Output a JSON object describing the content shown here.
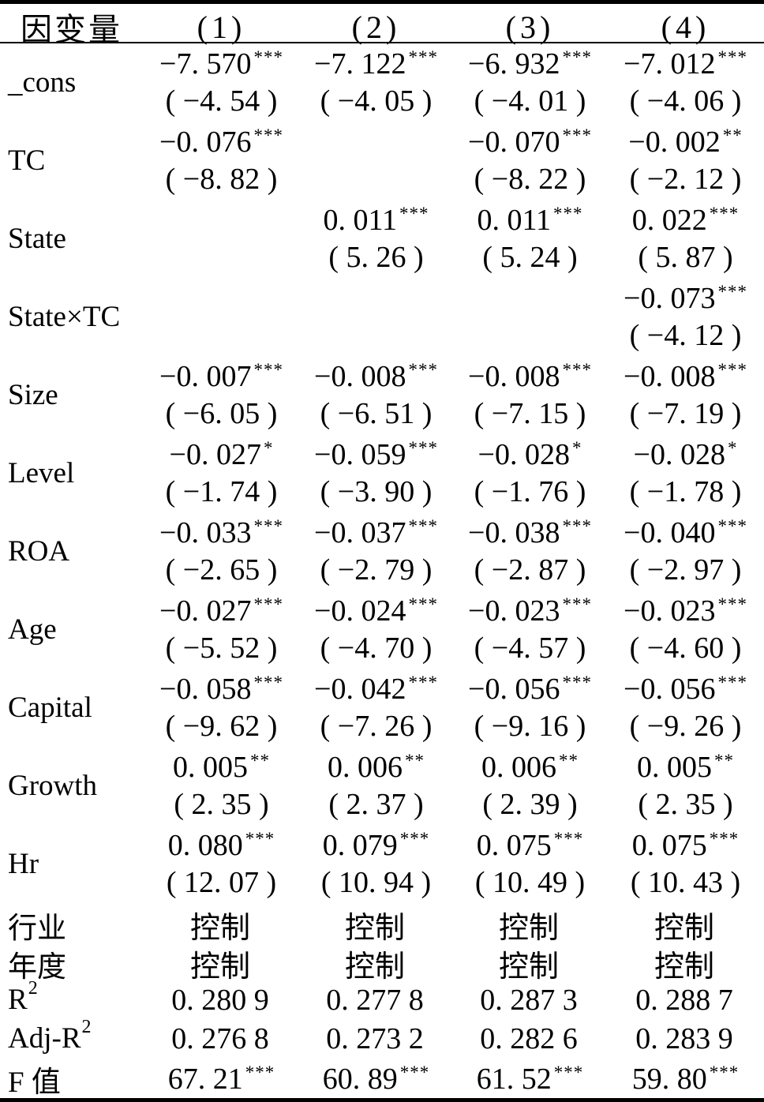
{
  "table": {
    "header": {
      "label": "因变量",
      "cols": [
        "(1)",
        "(2)",
        "(3)",
        "(4)"
      ]
    },
    "coef_rows": [
      {
        "label": "_cons",
        "cells": [
          {
            "coef": "−7. 570",
            "stars": "***",
            "t": "( −4. 54 )"
          },
          {
            "coef": "−7. 122",
            "stars": "***",
            "t": "( −4. 05 )"
          },
          {
            "coef": "−6. 932",
            "stars": "***",
            "t": "( −4. 01 )"
          },
          {
            "coef": "−7. 012",
            "stars": "***",
            "t": "( −4. 06 )"
          }
        ]
      },
      {
        "label": "TC",
        "cells": [
          {
            "coef": "−0. 076",
            "stars": "***",
            "t": "( −8. 82 )"
          },
          {
            "coef": "",
            "stars": "",
            "t": ""
          },
          {
            "coef": "−0. 070",
            "stars": "***",
            "t": "( −8. 22 )"
          },
          {
            "coef": "−0. 002",
            "stars": "**",
            "t": "( −2. 12 )"
          }
        ]
      },
      {
        "label": "State",
        "cells": [
          {
            "coef": "",
            "stars": "",
            "t": ""
          },
          {
            "coef": "0. 011",
            "stars": "***",
            "t": "( 5. 26 )"
          },
          {
            "coef": "0. 011",
            "stars": "***",
            "t": "( 5. 24 )"
          },
          {
            "coef": "0. 022",
            "stars": "***",
            "t": "( 5. 87 )"
          }
        ]
      },
      {
        "label": "State×TC",
        "cells": [
          {
            "coef": "",
            "stars": "",
            "t": ""
          },
          {
            "coef": "",
            "stars": "",
            "t": ""
          },
          {
            "coef": "",
            "stars": "",
            "t": ""
          },
          {
            "coef": "−0. 073",
            "stars": "***",
            "t": "( −4. 12 )"
          }
        ]
      },
      {
        "label": "Size",
        "cells": [
          {
            "coef": "−0. 007",
            "stars": "***",
            "t": "( −6. 05 )"
          },
          {
            "coef": "−0. 008",
            "stars": "***",
            "t": "( −6. 51 )"
          },
          {
            "coef": "−0. 008",
            "stars": "***",
            "t": "( −7. 15 )"
          },
          {
            "coef": "−0. 008",
            "stars": "***",
            "t": "( −7. 19 )"
          }
        ]
      },
      {
        "label": "Level",
        "cells": [
          {
            "coef": "−0. 027",
            "stars": "*",
            "t": "( −1. 74 )"
          },
          {
            "coef": "−0. 059",
            "stars": "***",
            "t": "( −3. 90 )"
          },
          {
            "coef": "−0. 028",
            "stars": "*",
            "t": "( −1. 76 )"
          },
          {
            "coef": "−0. 028",
            "stars": "*",
            "t": "( −1. 78 )"
          }
        ]
      },
      {
        "label": "ROA",
        "cells": [
          {
            "coef": "−0. 033",
            "stars": "***",
            "t": "( −2. 65 )"
          },
          {
            "coef": "−0. 037",
            "stars": "***",
            "t": "( −2. 79 )"
          },
          {
            "coef": "−0. 038",
            "stars": "***",
            "t": "( −2. 87 )"
          },
          {
            "coef": "−0. 040",
            "stars": "***",
            "t": "( −2. 97 )"
          }
        ]
      },
      {
        "label": "Age",
        "cells": [
          {
            "coef": "−0. 027",
            "stars": "***",
            "t": "( −5. 52 )"
          },
          {
            "coef": "−0. 024",
            "stars": "***",
            "t": "( −4. 70 )"
          },
          {
            "coef": "−0. 023",
            "stars": "***",
            "t": "( −4. 57 )"
          },
          {
            "coef": "−0. 023",
            "stars": "***",
            "t": "( −4. 60 )"
          }
        ]
      },
      {
        "label": "Capital",
        "cells": [
          {
            "coef": "−0. 058",
            "stars": "***",
            "t": "( −9. 62 )"
          },
          {
            "coef": "−0. 042",
            "stars": "***",
            "t": "( −7. 26 )"
          },
          {
            "coef": "−0. 056",
            "stars": "***",
            "t": "( −9. 16 )"
          },
          {
            "coef": "−0. 056",
            "stars": "***",
            "t": "( −9. 26 )"
          }
        ]
      },
      {
        "label": "Growth",
        "cells": [
          {
            "coef": "0. 005",
            "stars": "**",
            "t": "( 2. 35 )"
          },
          {
            "coef": "0. 006",
            "stars": "**",
            "t": "( 2. 37 )"
          },
          {
            "coef": "0. 006",
            "stars": "**",
            "t": "( 2. 39 )"
          },
          {
            "coef": "0. 005",
            "stars": "**",
            "t": "( 2. 35 )"
          }
        ]
      },
      {
        "label": "Hr",
        "cells": [
          {
            "coef": "0. 080",
            "stars": "***",
            "t": "( 12. 07 )"
          },
          {
            "coef": "0. 079",
            "stars": "***",
            "t": "( 10. 94 )"
          },
          {
            "coef": "0. 075",
            "stars": "***",
            "t": "( 10. 49 )"
          },
          {
            "coef": "0. 075",
            "stars": "***",
            "t": "( 10. 43 )"
          }
        ]
      }
    ],
    "stat_rows": [
      {
        "label_base": "行业",
        "label_sup": "",
        "cells": [
          {
            "text": "控制",
            "stars": ""
          },
          {
            "text": "控制",
            "stars": ""
          },
          {
            "text": "控制",
            "stars": ""
          },
          {
            "text": "控制",
            "stars": ""
          }
        ]
      },
      {
        "label_base": "年度",
        "label_sup": "",
        "cells": [
          {
            "text": "控制",
            "stars": ""
          },
          {
            "text": "控制",
            "stars": ""
          },
          {
            "text": "控制",
            "stars": ""
          },
          {
            "text": "控制",
            "stars": ""
          }
        ]
      },
      {
        "label_base": "R",
        "label_sup": "2",
        "cells": [
          {
            "text": "0. 280 9",
            "stars": ""
          },
          {
            "text": "0. 277 8",
            "stars": ""
          },
          {
            "text": "0. 287 3",
            "stars": ""
          },
          {
            "text": "0. 288 7",
            "stars": ""
          }
        ]
      },
      {
        "label_base": "Adj-R",
        "label_sup": "2",
        "cells": [
          {
            "text": "0. 276 8",
            "stars": ""
          },
          {
            "text": "0. 273 2",
            "stars": ""
          },
          {
            "text": "0. 282 6",
            "stars": ""
          },
          {
            "text": "0. 283 9",
            "stars": ""
          }
        ]
      },
      {
        "label_base": "F 值",
        "label_sup": "",
        "cells": [
          {
            "text": "67. 21",
            "stars": "***"
          },
          {
            "text": "60. 89",
            "stars": "***"
          },
          {
            "text": "61. 52",
            "stars": "***"
          },
          {
            "text": "59. 80",
            "stars": "***"
          }
        ]
      }
    ]
  }
}
